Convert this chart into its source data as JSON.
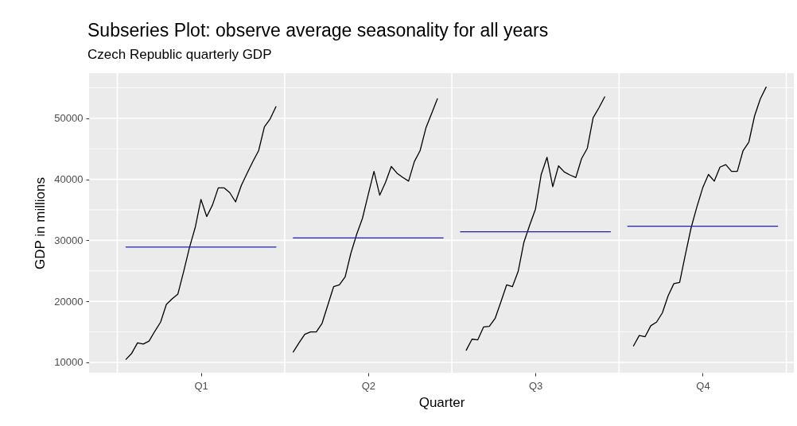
{
  "chart_data": {
    "type": "line",
    "title": "Subseries Plot: observe average seasonality for all years",
    "subtitle": "Czech Republic quarterly GDP",
    "xlabel": "Quarter",
    "ylabel": "GDP in millions",
    "categories": [
      null,
      null,
      null,
      null,
      null,
      null,
      null,
      null,
      null,
      null,
      null,
      null,
      null,
      null,
      "Q1",
      null,
      null,
      null,
      null,
      null,
      null,
      null,
      null,
      null,
      null,
      null,
      null,
      null,
      null,
      null,
      null,
      null,
      null,
      null,
      null,
      null,
      null,
      null,
      null,
      null,
      null,
      null,
      null,
      "Q2",
      null,
      null,
      null,
      null,
      null,
      null,
      null,
      null,
      null,
      null,
      null,
      null,
      null,
      null,
      null,
      null,
      null,
      null,
      null,
      null,
      null,
      null,
      null,
      null,
      null,
      null,
      null,
      null,
      "Q3",
      null,
      null,
      null,
      null,
      null,
      null,
      null,
      null,
      null,
      null,
      null,
      null,
      null,
      null,
      null,
      null,
      null,
      null,
      null,
      null,
      null,
      null,
      null,
      null,
      null,
      null,
      null,
      null,
      "Q4",
      null,
      null,
      null,
      null,
      null,
      null,
      null,
      null,
      null,
      null,
      null,
      null,
      null,
      null
    ],
    "ylim": [
      8300,
      57400
    ],
    "yticks": [
      10000,
      {
        "value": 15000,
        "label": null
      },
      20000,
      {
        "value": 25000,
        "label": null
      },
      30000,
      {
        "value": 35000,
        "label": null
      },
      40000,
      {
        "value": 45000,
        "label": null
      },
      50000,
      {
        "value": 55000,
        "label": null
      }
    ],
    "grid": true,
    "series": [
      {
        "color": "#000000",
        "values": [
          null,
          10500,
          11500,
          13200,
          13000,
          13500,
          15100,
          16600,
          19500,
          20400,
          21200,
          24900,
          28800,
          32100,
          36700,
          33900,
          35800,
          38600,
          38600,
          37800,
          36300,
          39000,
          41000,
          42900,
          44700,
          48600,
          49900,
          51900,
          null,
          null,
          null,
          null,
          null,
          null,
          null,
          null,
          null,
          null,
          null,
          null,
          null,
          null,
          null,
          null,
          null,
          null,
          null,
          null,
          null,
          null,
          null,
          null,
          null,
          null,
          null,
          null,
          null,
          null,
          null,
          null,
          null,
          null,
          null,
          null,
          null,
          null,
          null,
          null,
          null,
          null,
          null,
          null,
          null,
          null,
          null,
          null,
          null,
          null,
          null,
          null,
          null,
          null,
          null,
          null,
          null,
          null,
          null,
          null,
          null,
          null,
          null,
          null,
          null,
          null,
          null,
          null,
          null,
          null,
          null,
          null,
          null,
          null,
          null,
          null,
          null,
          null,
          null,
          null,
          null,
          null,
          null,
          null,
          null,
          null,
          null,
          null
        ]
      },
      {
        "color": "#000000",
        "values": [
          null,
          null,
          null,
          null,
          null,
          null,
          null,
          null,
          null,
          null,
          null,
          null,
          null,
          null,
          null,
          null,
          null,
          null,
          null,
          null,
          null,
          null,
          null,
          null,
          null,
          null,
          null,
          null,
          null,
          null,
          11700,
          13200,
          14600,
          15000,
          15000,
          16400,
          19400,
          22400,
          22700,
          24000,
          27900,
          31000,
          33600,
          37500,
          41300,
          37400,
          39500,
          42100,
          41000,
          40300,
          39700,
          42900,
          44700,
          48400,
          50800,
          53200,
          null,
          null,
          null,
          null,
          null,
          null,
          null,
          null,
          null,
          null,
          null,
          null,
          null,
          null,
          null,
          null,
          null,
          null,
          null,
          null,
          null,
          null,
          null,
          null,
          null,
          null,
          null,
          null,
          null,
          null,
          null,
          null,
          null,
          null,
          null,
          null,
          null,
          null,
          null,
          null,
          null,
          null,
          null,
          null,
          null,
          null,
          null,
          null,
          null,
          null,
          null,
          null,
          null,
          null,
          null,
          null,
          null,
          null,
          null,
          null
        ]
      },
      {
        "color": "#000000",
        "values": [
          null,
          null,
          null,
          null,
          null,
          null,
          null,
          null,
          null,
          null,
          null,
          null,
          null,
          null,
          null,
          null,
          null,
          null,
          null,
          null,
          null,
          null,
          null,
          null,
          null,
          null,
          null,
          null,
          null,
          null,
          null,
          null,
          null,
          null,
          null,
          null,
          null,
          null,
          null,
          null,
          null,
          null,
          null,
          null,
          null,
          null,
          null,
          null,
          null,
          null,
          null,
          null,
          null,
          null,
          null,
          null,
          null,
          null,
          null,
          null,
          12000,
          13800,
          13700,
          15800,
          15900,
          17200,
          19900,
          22700,
          22400,
          24900,
          29700,
          32500,
          35100,
          40800,
          43600,
          38800,
          42200,
          41200,
          40700,
          40300,
          43400,
          45100,
          50100,
          51700,
          53500,
          null,
          null,
          null,
          null,
          null,
          null,
          null,
          null,
          null,
          null,
          null,
          null,
          null,
          null,
          null,
          null,
          null,
          null,
          null,
          null,
          null,
          null,
          null,
          null,
          null,
          null,
          null,
          null,
          null,
          null,
          null
        ]
      },
      {
        "color": "#000000",
        "values": [
          null,
          null,
          null,
          null,
          null,
          null,
          null,
          null,
          null,
          null,
          null,
          null,
          null,
          null,
          null,
          null,
          null,
          null,
          null,
          null,
          null,
          null,
          null,
          null,
          null,
          null,
          null,
          null,
          null,
          null,
          null,
          null,
          null,
          null,
          null,
          null,
          null,
          null,
          null,
          null,
          null,
          null,
          null,
          null,
          null,
          null,
          null,
          null,
          null,
          null,
          null,
          null,
          null,
          null,
          null,
          null,
          null,
          null,
          null,
          null,
          null,
          null,
          null,
          null,
          null,
          null,
          null,
          null,
          null,
          null,
          null,
          null,
          null,
          null,
          null,
          null,
          null,
          null,
          null,
          null,
          null,
          null,
          null,
          null,
          null,
          null,
          null,
          null,
          null,
          12700,
          14400,
          14200,
          16000,
          16600,
          18100,
          20900,
          22900,
          23100,
          27700,
          32100,
          35500,
          38600,
          40800,
          39700,
          42000,
          42400,
          41300,
          41300,
          44700,
          46100,
          50400,
          53200,
          55100,
          null,
          null,
          null
        ]
      },
      {
        "color": "#1f1fb4",
        "values": [
          null,
          28900,
          28900,
          28900,
          28900,
          28900,
          28900,
          28900,
          28900,
          28900,
          28900,
          28900,
          28900,
          28900,
          28900,
          28900,
          28900,
          28900,
          28900,
          28900,
          28900,
          28900,
          28900,
          28900,
          28900,
          28900,
          28900,
          28900,
          null,
          null,
          null,
          null,
          null,
          null,
          null,
          null,
          null,
          null,
          null,
          null,
          null,
          null,
          null,
          null,
          null,
          null,
          null,
          null,
          null,
          null,
          null,
          null,
          null,
          null,
          null,
          null,
          null,
          null,
          null,
          null,
          null,
          null,
          null,
          null,
          null,
          null,
          null,
          null,
          null,
          null,
          null,
          null,
          null,
          null,
          null,
          null,
          null,
          null,
          null,
          null,
          null,
          null,
          null,
          null,
          null,
          null,
          null,
          null,
          null,
          null,
          null,
          null,
          null,
          null,
          null,
          null,
          null,
          null,
          null,
          null,
          null,
          null,
          null,
          null,
          null,
          null,
          null,
          null,
          null,
          null,
          null,
          null,
          null,
          null,
          null,
          null
        ]
      },
      {
        "color": "#1f1fb4",
        "values": [
          null,
          null,
          null,
          null,
          null,
          null,
          null,
          null,
          null,
          null,
          null,
          null,
          null,
          null,
          null,
          null,
          null,
          null,
          null,
          null,
          null,
          null,
          null,
          null,
          null,
          null,
          null,
          null,
          null,
          null,
          30400,
          30400,
          30400,
          30400,
          30400,
          30400,
          30400,
          30400,
          30400,
          30400,
          30400,
          30400,
          30400,
          30400,
          30400,
          30400,
          30400,
          30400,
          30400,
          30400,
          30400,
          30400,
          30400,
          30400,
          30400,
          30400,
          30400,
          null,
          null,
          null,
          null,
          null,
          null,
          null,
          null,
          null,
          null,
          null,
          null,
          null,
          null,
          null,
          null,
          null,
          null,
          null,
          null,
          null,
          null,
          null,
          null,
          null,
          null,
          null,
          null,
          null,
          null,
          null,
          null,
          null,
          null,
          null,
          null,
          null,
          null,
          null,
          null,
          null,
          null,
          null,
          null,
          null,
          null,
          null,
          null,
          null,
          null,
          null,
          null,
          null,
          null,
          null,
          null,
          null,
          null,
          null
        ]
      },
      {
        "color": "#1f1fb4",
        "values": [
          null,
          null,
          null,
          null,
          null,
          null,
          null,
          null,
          null,
          null,
          null,
          null,
          null,
          null,
          null,
          null,
          null,
          null,
          null,
          null,
          null,
          null,
          null,
          null,
          null,
          null,
          null,
          null,
          null,
          null,
          null,
          null,
          null,
          null,
          null,
          null,
          null,
          null,
          null,
          null,
          null,
          null,
          null,
          null,
          null,
          null,
          null,
          null,
          null,
          null,
          null,
          null,
          null,
          null,
          null,
          null,
          null,
          null,
          null,
          31400,
          31400,
          31400,
          31400,
          31400,
          31400,
          31400,
          31400,
          31400,
          31400,
          31400,
          31400,
          31400,
          31400,
          31400,
          31400,
          31400,
          31400,
          31400,
          31400,
          31400,
          31400,
          31400,
          31400,
          31400,
          31400,
          31400,
          null,
          null,
          null,
          null,
          null,
          null,
          null,
          null,
          null,
          null,
          null,
          null,
          null,
          null,
          null,
          null,
          null,
          null,
          null,
          null,
          null,
          null,
          null,
          null,
          null,
          null,
          null,
          null,
          null,
          null
        ]
      },
      {
        "color": "#1f1fb4",
        "values": [
          null,
          null,
          null,
          null,
          null,
          null,
          null,
          null,
          null,
          null,
          null,
          null,
          null,
          null,
          null,
          null,
          null,
          null,
          null,
          null,
          null,
          null,
          null,
          null,
          null,
          null,
          null,
          null,
          null,
          null,
          null,
          null,
          null,
          null,
          null,
          null,
          null,
          null,
          null,
          null,
          null,
          null,
          null,
          null,
          null,
          null,
          null,
          null,
          null,
          null,
          null,
          null,
          null,
          null,
          null,
          null,
          null,
          null,
          null,
          null,
          null,
          null,
          null,
          null,
          null,
          null,
          null,
          null,
          null,
          null,
          null,
          null,
          null,
          null,
          null,
          null,
          null,
          null,
          null,
          null,
          null,
          null,
          null,
          null,
          null,
          null,
          null,
          null,
          32300,
          32300,
          32300,
          32300,
          32300,
          32300,
          32300,
          32300,
          32300,
          32300,
          32300,
          32300,
          32300,
          32300,
          32300,
          32300,
          32300,
          32300,
          32300,
          32300,
          32300,
          32300,
          32300,
          32300,
          32300,
          32300,
          32300,
          null
        ]
      }
    ]
  }
}
